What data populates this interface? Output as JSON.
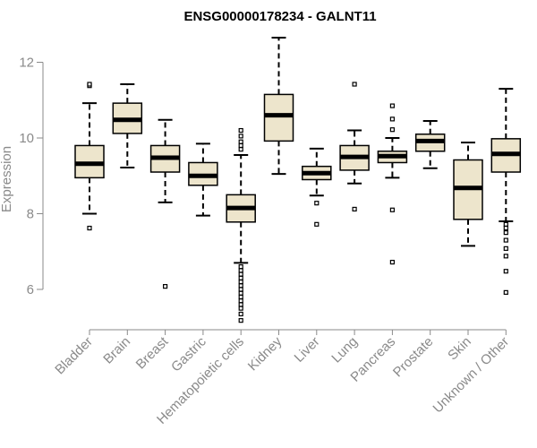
{
  "chart_data": {
    "type": "boxplot",
    "title": "ENSG00000178234 - GALNT11",
    "xlabel": "",
    "ylabel": "Expression",
    "ylim": [
      5.1,
      12.7
    ],
    "yticks": [
      6,
      8,
      10,
      12
    ],
    "box_color": "#ede5cc",
    "categories": [
      "Bladder",
      "Brain",
      "Breast",
      "Gastric",
      "Hematopoietic cells",
      "Kidney",
      "Liver",
      "Lung",
      "Pancreas",
      "Prostate",
      "Skin",
      "Unknown / Other"
    ],
    "boxes": [
      {
        "name": "Bladder",
        "whisker_low": 8.0,
        "q1": 8.95,
        "median": 9.32,
        "q3": 9.8,
        "whisker_high": 10.92,
        "outliers": [
          7.62,
          11.38,
          11.42
        ]
      },
      {
        "name": "Brain",
        "whisker_low": 9.22,
        "q1": 10.12,
        "median": 10.48,
        "q3": 10.92,
        "whisker_high": 11.42,
        "outliers": []
      },
      {
        "name": "Breast",
        "whisker_low": 8.3,
        "q1": 9.1,
        "median": 9.48,
        "q3": 9.8,
        "whisker_high": 10.48,
        "outliers": [
          6.08
        ]
      },
      {
        "name": "Gastric",
        "whisker_low": 7.95,
        "q1": 8.75,
        "median": 9.0,
        "q3": 9.35,
        "whisker_high": 9.85,
        "outliers": []
      },
      {
        "name": "Hematopoietic cells",
        "whisker_low": 6.7,
        "q1": 7.78,
        "median": 8.15,
        "q3": 8.5,
        "whisker_high": 9.55,
        "outliers": [
          5.18,
          5.35,
          5.5,
          5.6,
          5.7,
          5.8,
          5.9,
          6.0,
          6.1,
          6.2,
          6.3,
          6.4,
          6.5,
          6.6,
          9.7,
          9.8,
          9.9,
          10.05,
          10.2
        ]
      },
      {
        "name": "Kidney",
        "whisker_low": 9.05,
        "q1": 9.92,
        "median": 10.6,
        "q3": 11.15,
        "whisker_high": 12.65,
        "outliers": []
      },
      {
        "name": "Liver",
        "whisker_low": 8.48,
        "q1": 8.9,
        "median": 9.07,
        "q3": 9.25,
        "whisker_high": 9.72,
        "outliers": [
          7.72,
          8.28
        ]
      },
      {
        "name": "Lung",
        "whisker_low": 8.8,
        "q1": 9.15,
        "median": 9.5,
        "q3": 9.8,
        "whisker_high": 10.2,
        "outliers": [
          8.12,
          11.42
        ]
      },
      {
        "name": "Pancreas",
        "whisker_low": 8.95,
        "q1": 9.35,
        "median": 9.52,
        "q3": 9.65,
        "whisker_high": 10.0,
        "outliers": [
          6.72,
          8.1,
          10.22,
          10.5,
          10.85
        ]
      },
      {
        "name": "Prostate",
        "whisker_low": 9.2,
        "q1": 9.65,
        "median": 9.92,
        "q3": 10.1,
        "whisker_high": 10.45,
        "outliers": []
      },
      {
        "name": "Skin",
        "whisker_low": 7.15,
        "q1": 7.85,
        "median": 8.68,
        "q3": 9.42,
        "whisker_high": 9.88,
        "outliers": []
      },
      {
        "name": "Unknown / Other",
        "whisker_low": 7.8,
        "q1": 9.1,
        "median": 9.58,
        "q3": 9.98,
        "whisker_high": 11.3,
        "outliers": [
          5.92,
          6.48,
          6.88,
          7.08,
          7.3,
          7.5,
          7.62,
          7.72
        ]
      }
    ]
  }
}
